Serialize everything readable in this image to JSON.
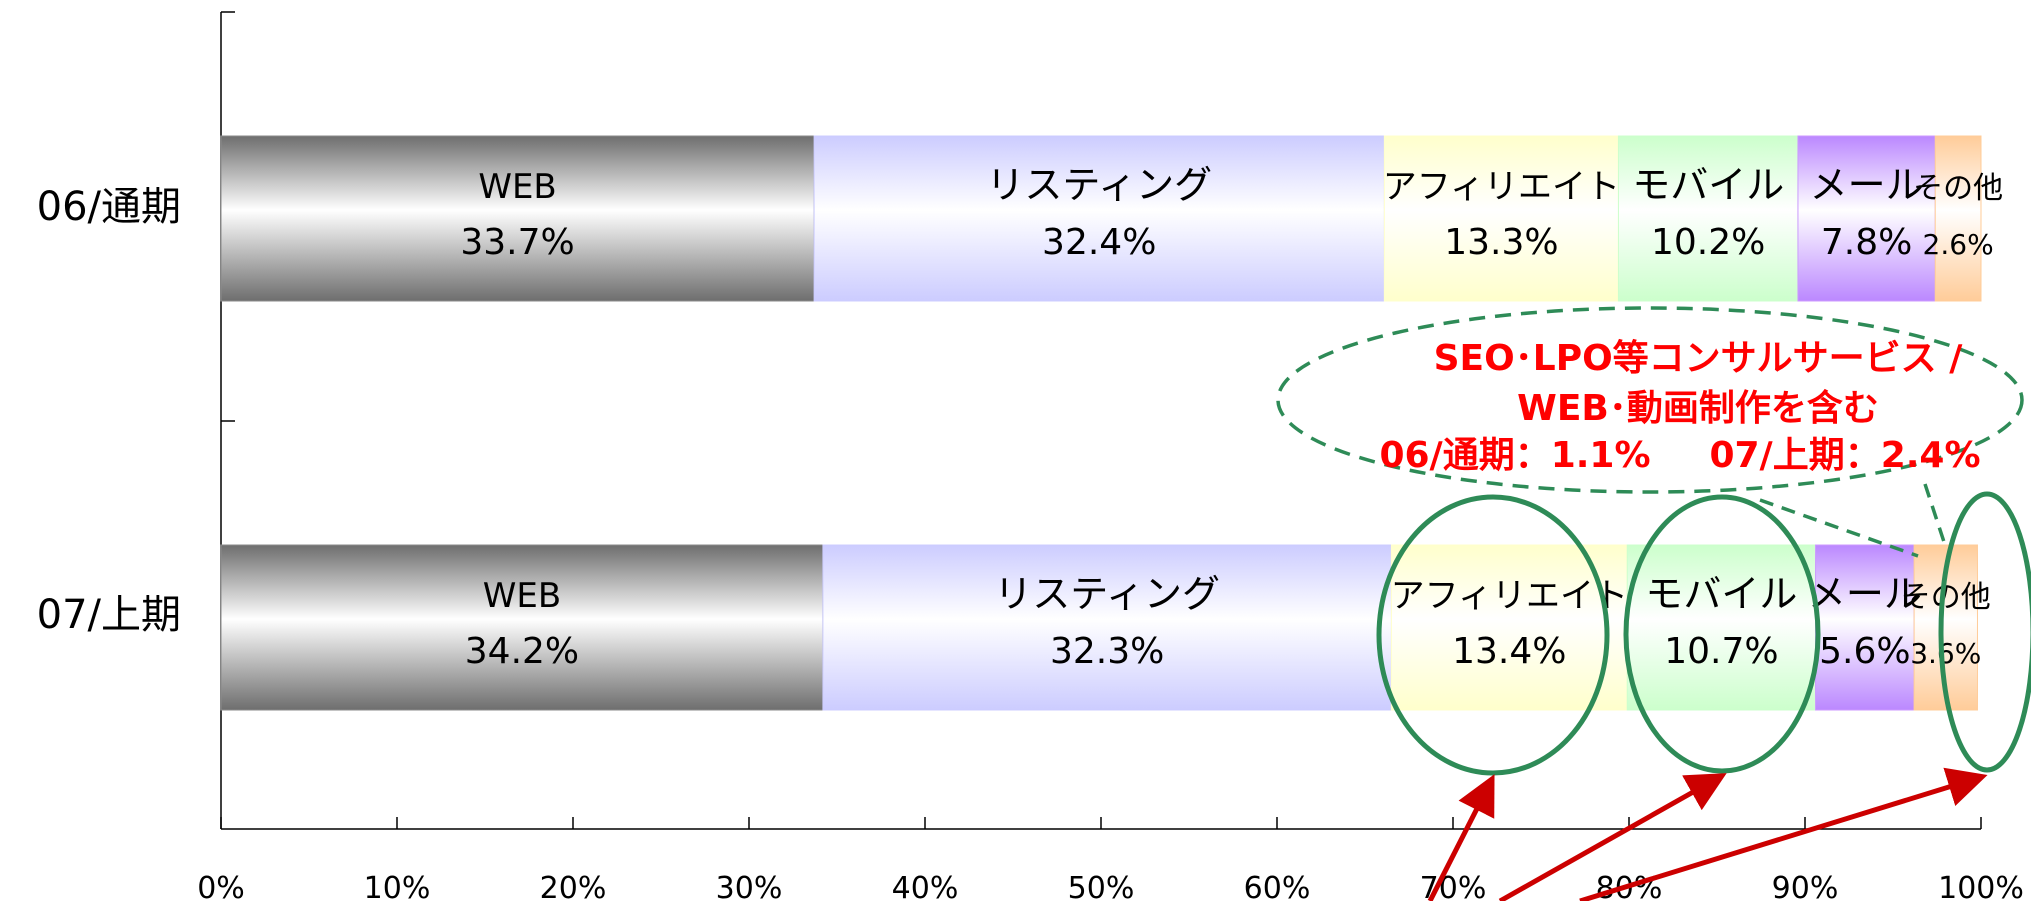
{
  "chart_data": {
    "type": "bar",
    "orientation": "horizontal",
    "stacked": "percent",
    "categories": [
      "06/通期",
      "07/上期"
    ],
    "series": [
      {
        "name": "WEB",
        "values": [
          33.7,
          34.2
        ],
        "labels": [
          "33.7%",
          "34.2%"
        ],
        "color": "#8a8a8a"
      },
      {
        "name": "リスティング",
        "values": [
          32.4,
          32.3
        ],
        "labels": [
          "32.4%",
          "32.3%"
        ],
        "color": "#ccccff"
      },
      {
        "name": "アフィリエイト",
        "values": [
          13.3,
          13.4
        ],
        "labels": [
          "13.3%",
          "13.4%"
        ],
        "color": "#ffffcc"
      },
      {
        "name": "モバイル",
        "values": [
          10.2,
          10.7
        ],
        "labels": [
          "10.2%",
          "10.7%"
        ],
        "color": "#ccffcc"
      },
      {
        "name": "メール",
        "values": [
          7.8,
          5.6
        ],
        "labels": [
          "7.8%",
          "5.6%"
        ],
        "color": "#cc99ff"
      },
      {
        "name": "その他",
        "values": [
          2.6,
          3.6
        ],
        "labels": [
          "2.6%",
          "3.6%"
        ],
        "color": "#ffcc99"
      }
    ],
    "xlim": [
      0,
      100
    ],
    "xticks": [
      "0%",
      "10%",
      "20%",
      "30%",
      "40%",
      "50%",
      "60%",
      "70%",
      "80%",
      "90%",
      "100%"
    ],
    "grid": false,
    "legend": "none",
    "annotations": {
      "note_lines": [
        "SEO･LPO等コンサルサービス /",
        "WEB･動画制作を含む",
        "06/通期：1.1%",
        "07/上期：2.4%"
      ],
      "highlighted_series": [
        "アフィリエイト",
        "モバイル",
        "その他"
      ],
      "ellipse_color": "#2e8b57",
      "arrow_color": "#cc0000",
      "note_color": "#ff0000"
    }
  }
}
